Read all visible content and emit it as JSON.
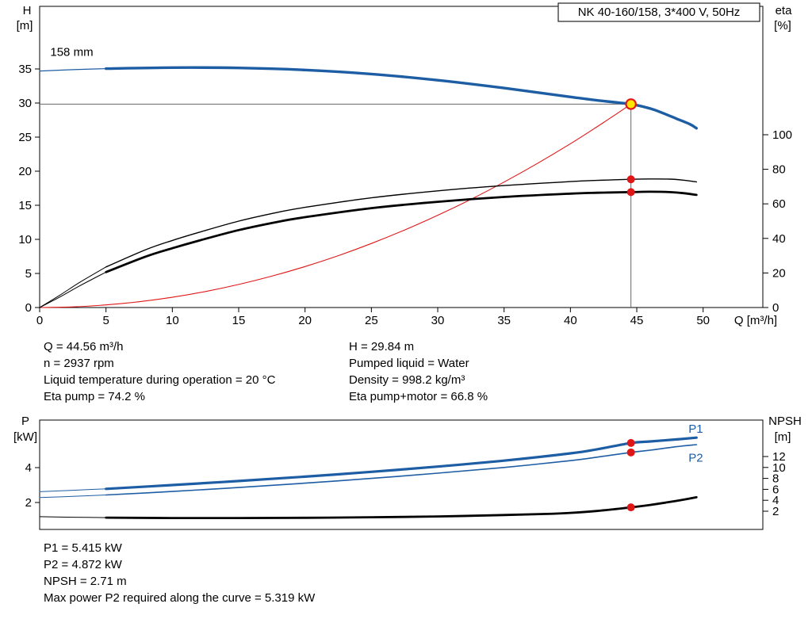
{
  "title_box": {
    "label": "NK 40-160/158, 3*400 V, 50Hz"
  },
  "colors": {
    "curve_blue": "#1d5da4",
    "curve_black": "#000000",
    "system_red": "#e01616",
    "duty_yellow": "#ffe600",
    "crosshair_gray": "#666666",
    "axis_black": "#000000"
  },
  "info_top": {
    "left": [
      "Q = 44.56 m³/h",
      "n = 2937 rpm",
      "Liquid temperature during operation = 20 °C",
      "Eta pump = 74.2 %"
    ],
    "right": [
      "H = 29.84 m",
      "Pumped liquid = Water",
      "Density = 998.2 kg/m³",
      "Eta pump+motor = 66.8 %"
    ]
  },
  "info_bottom": [
    "P1 = 5.415 kW",
    "P2 = 4.872 kW",
    "NPSH = 2.71 m",
    "Max power P2 required along the curve = 5.319 kW"
  ],
  "chart_data": [
    {
      "type": "line",
      "title": "NK 40-160/158, 3*400 V, 50Hz",
      "axes": {
        "x": {
          "label": "Q [m³/h]",
          "range": [
            0,
            54.5
          ],
          "ticks": [
            0,
            5,
            10,
            15,
            20,
            25,
            30,
            35,
            40,
            45,
            50
          ]
        },
        "left": {
          "label": "H",
          "unit": "[m]",
          "range": [
            0,
            44.2
          ],
          "ticks": [
            0,
            5,
            10,
            15,
            20,
            25,
            30,
            35
          ]
        },
        "right": {
          "label": "eta",
          "unit": "[%]",
          "range": [
            0,
            174.3
          ],
          "ticks": [
            0,
            20,
            40,
            60,
            80,
            100
          ]
        }
      },
      "series": [
        {
          "name": "system-curve",
          "color": "#e01616",
          "width": 1.1,
          "axis": "left",
          "x": [
            0,
            2.5,
            5,
            7.5,
            10,
            12.5,
            15,
            17.5,
            20,
            22.5,
            25,
            27.5,
            30,
            32.5,
            35,
            37.5,
            40,
            42,
            43.5,
            44.56
          ],
          "y": [
            0,
            0.09,
            0.38,
            0.85,
            1.5,
            2.35,
            3.38,
            4.6,
            6.01,
            7.61,
            9.39,
            11.37,
            13.53,
            15.87,
            18.41,
            21.13,
            24.04,
            26.51,
            28.44,
            29.84
          ]
        },
        {
          "name": "eta-pump-lead",
          "color": "#000000",
          "width": 1,
          "axis": "right",
          "x": [
            0,
            1.5,
            3,
            5
          ],
          "y": [
            0,
            7,
            14.5,
            23.5
          ]
        },
        {
          "name": "eta-pump",
          "color": "#000000",
          "width": 1.4,
          "axis": "right",
          "x": [
            5,
            8,
            10,
            12,
            15,
            18,
            20,
            25,
            30,
            35,
            40,
            42,
            44.56,
            46,
            47.5,
            48.5,
            49.5
          ],
          "y": [
            23.5,
            33.5,
            38.8,
            43.5,
            50,
            55.2,
            58,
            63.5,
            67.5,
            70.6,
            72.9,
            73.6,
            74.2,
            74.4,
            74.3,
            73.7,
            72.7
          ]
        },
        {
          "name": "eta-pump-motor-lead",
          "color": "#000000",
          "width": 1,
          "axis": "right",
          "x": [
            0,
            1.5,
            3,
            5
          ],
          "y": [
            0,
            6,
            12.5,
            20.5
          ]
        },
        {
          "name": "eta-pump-motor",
          "color": "#000000",
          "width": 2.8,
          "axis": "right",
          "x": [
            5,
            8,
            10,
            12,
            15,
            18,
            20,
            25,
            30,
            35,
            40,
            42,
            44.56,
            46,
            47.5,
            48.5,
            49.5
          ],
          "y": [
            20.5,
            29.5,
            34.3,
            38.7,
            44.8,
            49.7,
            52.3,
            57.5,
            61.2,
            64,
            65.9,
            66.4,
            66.8,
            67,
            66.8,
            66.2,
            65.2
          ]
        },
        {
          "name": "head-lead",
          "color": "#1d5da4",
          "width": 1.2,
          "axis": "left",
          "x": [
            0,
            2.5,
            5
          ],
          "y": [
            34.7,
            34.9,
            35.05
          ]
        },
        {
          "name": "head",
          "color": "#1d5da4",
          "width": 3.4,
          "axis": "left",
          "x": [
            5,
            10,
            15,
            20,
            25,
            30,
            35,
            40,
            42,
            44.56,
            46,
            47,
            48,
            49,
            49.5
          ],
          "y": [
            35.05,
            35.2,
            35.15,
            34.85,
            34.25,
            33.35,
            32.2,
            30.9,
            30.4,
            29.84,
            29.2,
            28.5,
            27.7,
            26.9,
            26.3
          ]
        }
      ],
      "markers": [
        {
          "style": "dot",
          "axis": "right",
          "x": 44.56,
          "y": 74.2,
          "name": "eta-pump-duty-dot"
        },
        {
          "style": "dot",
          "axis": "right",
          "x": 44.56,
          "y": 66.8,
          "name": "eta-pump-motor-duty-dot"
        },
        {
          "style": "duty",
          "axis": "left",
          "x": 44.56,
          "y": 29.84,
          "name": "duty-point"
        }
      ],
      "crosshair": {
        "x": 44.56,
        "y": 29.84
      },
      "annotations": [
        {
          "text": "158 mm",
          "x": 0.8,
          "y": 36.9,
          "axis": "left",
          "anchor": "start",
          "color": "#000000",
          "name": "impeller-diameter-label"
        }
      ]
    },
    {
      "type": "line",
      "title": "",
      "axes": {
        "x": {
          "label": "",
          "range": [
            0,
            54.5
          ],
          "ticks": []
        },
        "left": {
          "label": "P",
          "unit": "[kW]",
          "range": [
            0,
            7.2
          ],
          "ticks": [
            2,
            4
          ]
        },
        "right": {
          "label": "NPSH",
          "unit": "[m]",
          "range": [
            0,
            18.7
          ],
          "ticks": [
            2,
            4,
            6,
            8,
            10,
            12
          ]
        }
      },
      "series": [
        {
          "name": "npsh-lead",
          "color": "#000000",
          "width": 1,
          "axis": "right",
          "x": [
            0,
            2.5,
            5
          ],
          "y": [
            1.0,
            0.9,
            0.82
          ]
        },
        {
          "name": "npsh",
          "color": "#000000",
          "width": 2.8,
          "axis": "right",
          "x": [
            5,
            10,
            15,
            20,
            25,
            30,
            35,
            38,
            40,
            42,
            44.56,
            46,
            47.5,
            48.5,
            49.5
          ],
          "y": [
            0.82,
            0.76,
            0.75,
            0.8,
            0.9,
            1.05,
            1.3,
            1.5,
            1.7,
            2.05,
            2.71,
            3.15,
            3.7,
            4.1,
            4.55
          ]
        },
        {
          "name": "p2-lead",
          "color": "#1d5da4",
          "width": 1,
          "axis": "left",
          "x": [
            0,
            2.5,
            5
          ],
          "y": [
            2.28,
            2.35,
            2.43
          ]
        },
        {
          "name": "p2",
          "color": "#1d5da4",
          "width": 1.6,
          "axis": "left",
          "x": [
            5,
            10,
            15,
            20,
            25,
            30,
            35,
            40,
            42,
            44.56,
            46,
            48,
            49.5
          ],
          "y": [
            2.43,
            2.63,
            2.86,
            3.11,
            3.38,
            3.68,
            4.01,
            4.4,
            4.6,
            4.872,
            5.0,
            5.2,
            5.319
          ]
        },
        {
          "name": "p1-lead",
          "color": "#1d5da4",
          "width": 1,
          "axis": "left",
          "x": [
            0,
            2.5,
            5
          ],
          "y": [
            2.62,
            2.7,
            2.78
          ]
        },
        {
          "name": "p1",
          "color": "#1d5da4",
          "width": 3.2,
          "axis": "left",
          "x": [
            5,
            10,
            15,
            20,
            25,
            30,
            35,
            40,
            42,
            44.56,
            46,
            48,
            49.5
          ],
          "y": [
            2.78,
            3.0,
            3.23,
            3.48,
            3.76,
            4.06,
            4.4,
            4.82,
            5.05,
            5.415,
            5.5,
            5.62,
            5.72
          ]
        }
      ],
      "markers": [
        {
          "style": "dot",
          "axis": "left",
          "x": 44.56,
          "y": 5.415,
          "name": "p1-duty-dot"
        },
        {
          "style": "dot",
          "axis": "left",
          "x": 44.56,
          "y": 4.872,
          "name": "p2-duty-dot"
        },
        {
          "style": "dot",
          "axis": "right",
          "x": 44.56,
          "y": 2.71,
          "name": "npsh-duty-dot"
        }
      ],
      "annotations": [
        {
          "text": "P1",
          "x": 48.9,
          "y": 6.0,
          "axis": "left",
          "anchor": "start",
          "color": "#1d5da4",
          "name": "p1-curve-label"
        },
        {
          "text": "P2",
          "x": 48.9,
          "y": 4.33,
          "axis": "left",
          "anchor": "start",
          "color": "#1d5da4",
          "name": "p2-curve-label"
        }
      ]
    }
  ]
}
